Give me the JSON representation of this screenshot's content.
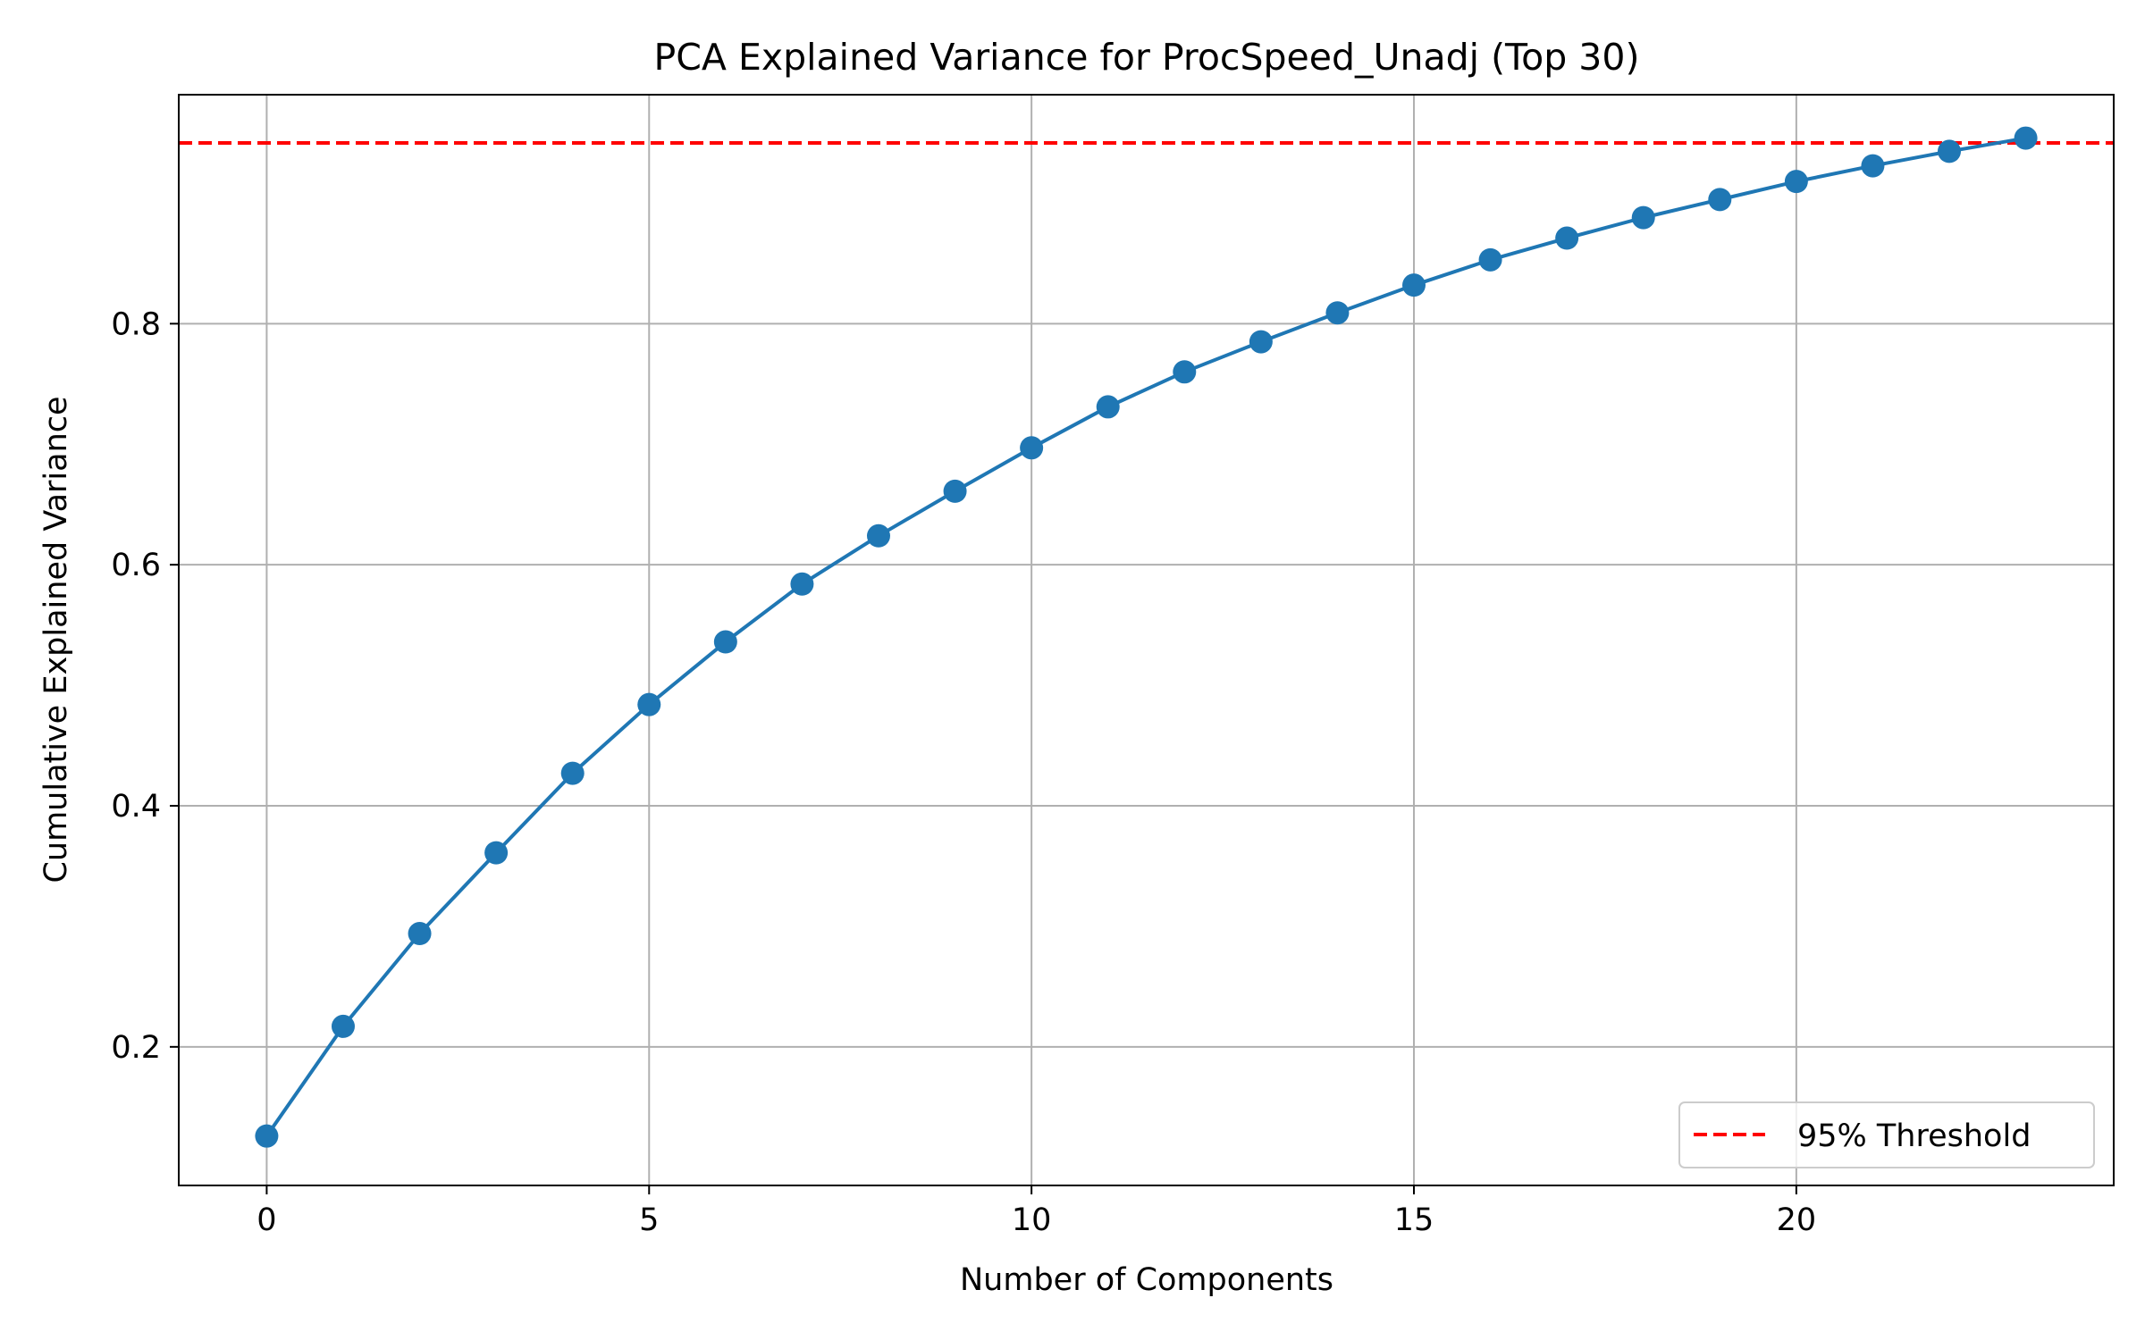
{
  "chart_data": {
    "type": "line",
    "title": "PCA Explained Variance for ProcSpeed_Unadj (Top 30)",
    "xlabel": "Number of Components",
    "ylabel": "Cumulative Explained Variance",
    "xlim": [
      -1.15,
      24.15
    ],
    "ylim": [
      0.085,
      0.99
    ],
    "xticks": [
      0,
      5,
      10,
      15,
      20
    ],
    "xtick_labels": [
      "0",
      "5",
      "10",
      "15",
      "20"
    ],
    "yticks": [
      0.2,
      0.4,
      0.6,
      0.8
    ],
    "ytick_labels": [
      "0.2",
      "0.4",
      "0.6",
      "0.8"
    ],
    "grid": true,
    "legend_position": "lower-right",
    "series": [
      {
        "x": [
          0,
          1,
          2,
          3,
          4,
          5,
          6,
          7,
          8,
          9,
          10,
          11,
          12,
          13,
          14,
          15,
          16,
          17,
          18,
          19,
          20,
          21,
          22,
          23
        ],
        "values": [
          0.126,
          0.217,
          0.294,
          0.361,
          0.427,
          0.484,
          0.536,
          0.584,
          0.624,
          0.661,
          0.697,
          0.731,
          0.76,
          0.785,
          0.809,
          0.832,
          0.853,
          0.871,
          0.888,
          0.903,
          0.918,
          0.931,
          0.943,
          0.954
        ],
        "color": "#1f77b4",
        "marker": "circle"
      }
    ],
    "threshold": {
      "name": "95% Threshold",
      "value": 0.95,
      "color": "#ff0000",
      "style": "dashed"
    }
  }
}
